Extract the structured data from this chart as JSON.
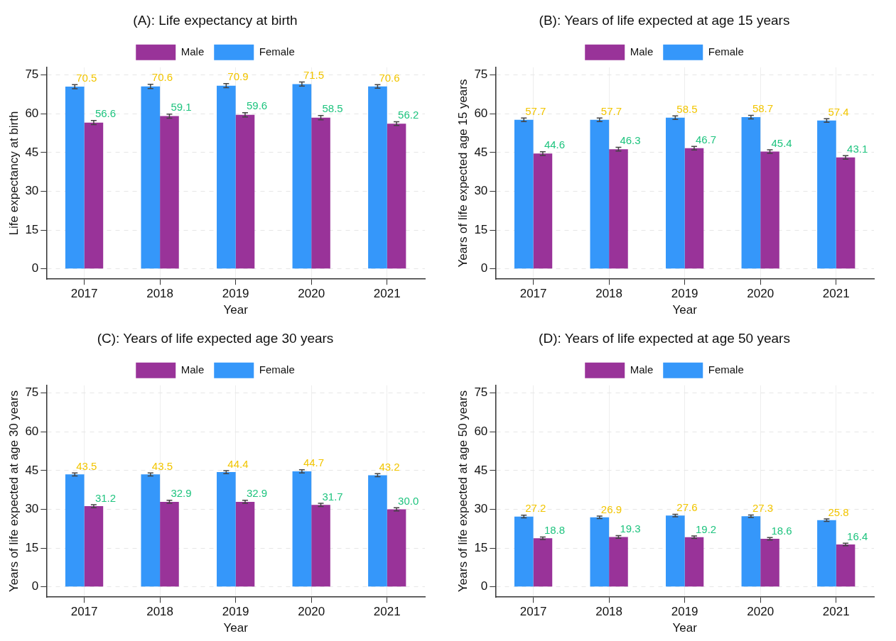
{
  "chart_data": [
    {
      "type": "bar",
      "title": "(A): Life expectancy at birth",
      "xlabel": "Year",
      "ylabel": "Life expectancy at birth",
      "categories": [
        "2017",
        "2018",
        "2019",
        "2020",
        "2021"
      ],
      "legend": "top",
      "grid": true,
      "data_labels": true,
      "ylim": [
        -4,
        78
      ],
      "yticks": [
        0,
        15,
        30,
        45,
        60,
        75
      ],
      "series": [
        {
          "name": "Female",
          "color": "#3597fa",
          "values": [
            70.5,
            70.6,
            70.9,
            71.5,
            70.6
          ],
          "errors": [
            0.8,
            0.8,
            0.8,
            0.8,
            0.7
          ]
        },
        {
          "name": "Male",
          "color": "#993399",
          "values": [
            56.6,
            59.1,
            59.6,
            58.5,
            56.2
          ],
          "errors": [
            0.8,
            0.8,
            0.8,
            0.8,
            0.7
          ]
        }
      ]
    },
    {
      "type": "bar",
      "title": "(B): Years of life expected at age 15 years",
      "xlabel": "Year",
      "ylabel": "Years of life expected age 15 years",
      "categories": [
        "2017",
        "2018",
        "2019",
        "2020",
        "2021"
      ],
      "legend": "top",
      "grid": true,
      "data_labels": true,
      "ylim": [
        -4,
        78
      ],
      "yticks": [
        0,
        15,
        30,
        45,
        60,
        75
      ],
      "series": [
        {
          "name": "Female",
          "color": "#3597fa",
          "values": [
            57.7,
            57.7,
            58.5,
            58.7,
            57.4
          ],
          "errors": [
            0.7,
            0.7,
            0.7,
            0.7,
            0.7
          ]
        },
        {
          "name": "Male",
          "color": "#993399",
          "values": [
            44.6,
            46.3,
            46.7,
            45.4,
            43.1
          ],
          "errors": [
            0.7,
            0.7,
            0.7,
            0.7,
            0.7
          ]
        }
      ]
    },
    {
      "type": "bar",
      "title": "(C): Years of life expected age 30 years",
      "xlabel": "Year",
      "ylabel": "Years of life expected at age 30 years",
      "categories": [
        "2017",
        "2018",
        "2019",
        "2020",
        "2021"
      ],
      "legend": "top",
      "grid": true,
      "data_labels": true,
      "ylim": [
        -4,
        78
      ],
      "yticks": [
        0,
        15,
        30,
        45,
        60,
        75
      ],
      "series": [
        {
          "name": "Female",
          "color": "#3597fa",
          "values": [
            43.5,
            43.5,
            44.4,
            44.7,
            43.2
          ],
          "errors": [
            0.6,
            0.6,
            0.6,
            0.6,
            0.6
          ]
        },
        {
          "name": "Male",
          "color": "#993399",
          "values": [
            31.2,
            32.9,
            32.9,
            31.7,
            30.0
          ],
          "value_labels": [
            "31.2",
            "32.9",
            "32.9",
            "31.7",
            "30.0"
          ],
          "errors": [
            0.6,
            0.6,
            0.6,
            0.6,
            0.6
          ]
        }
      ]
    },
    {
      "type": "bar",
      "title": "(D): Years of life expected at age 50 years",
      "xlabel": "Year",
      "ylabel": "Years of life expected at age 50 years",
      "categories": [
        "2017",
        "2018",
        "2019",
        "2020",
        "2021"
      ],
      "legend": "top",
      "grid": true,
      "data_labels": true,
      "ylim": [
        -4,
        78
      ],
      "yticks": [
        0,
        15,
        30,
        45,
        60,
        75
      ],
      "series": [
        {
          "name": "Female",
          "color": "#3597fa",
          "values": [
            27.2,
            26.9,
            27.6,
            27.3,
            25.8
          ],
          "errors": [
            0.5,
            0.5,
            0.5,
            0.5,
            0.5
          ]
        },
        {
          "name": "Male",
          "color": "#993399",
          "values": [
            18.8,
            19.3,
            19.2,
            18.6,
            16.4
          ],
          "errors": [
            0.5,
            0.5,
            0.5,
            0.5,
            0.5
          ]
        }
      ]
    }
  ]
}
